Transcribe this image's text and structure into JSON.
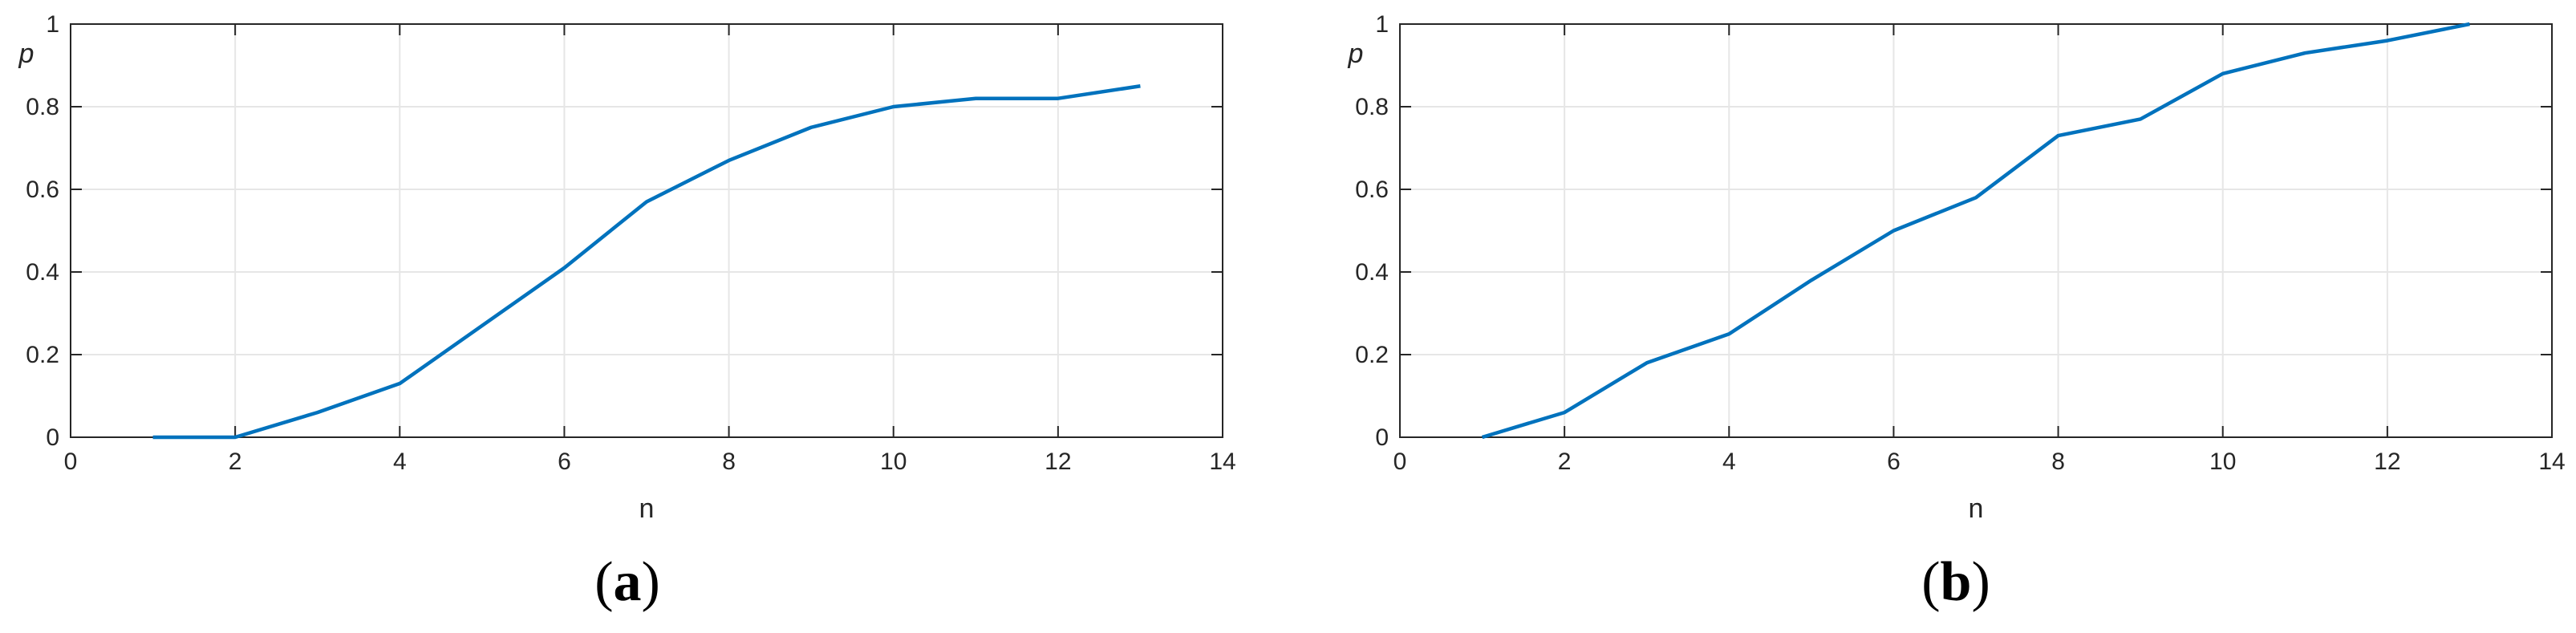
{
  "colors": {
    "series": "#0072BD",
    "axis": "#262626",
    "grid": "#e6e6e6"
  },
  "chart_data": [
    {
      "type": "line",
      "panel_label": "(a)",
      "panel_letter": "a",
      "xlabel": "n",
      "ylabel": "p",
      "xlim": [
        0,
        14
      ],
      "ylim": [
        0,
        1
      ],
      "x_ticks": [
        0,
        2,
        4,
        6,
        8,
        10,
        12,
        14
      ],
      "y_ticks": [
        0,
        0.2,
        0.4,
        0.6,
        0.8,
        1
      ],
      "x_tick_labels": [
        "0",
        "2",
        "4",
        "6",
        "8",
        "10",
        "12",
        "14"
      ],
      "y_tick_labels": [
        "0",
        "0.2",
        "0.4",
        "0.6",
        "0.8",
        "1"
      ],
      "grid": true,
      "series": [
        {
          "x": [
            1,
            2,
            3,
            4,
            5,
            6,
            7,
            8,
            9,
            10,
            11,
            12,
            13
          ],
          "values": [
            0,
            0,
            0.06,
            0.13,
            0.27,
            0.41,
            0.57,
            0.67,
            0.75,
            0.8,
            0.82,
            0.82,
            0.85
          ]
        }
      ]
    },
    {
      "type": "line",
      "panel_label": "(b)",
      "panel_letter": "b",
      "xlabel": "n",
      "ylabel": "p",
      "xlim": [
        0,
        14
      ],
      "ylim": [
        0,
        1
      ],
      "x_ticks": [
        0,
        2,
        4,
        6,
        8,
        10,
        12,
        14
      ],
      "y_ticks": [
        0,
        0.2,
        0.4,
        0.6,
        0.8,
        1
      ],
      "x_tick_labels": [
        "0",
        "2",
        "4",
        "6",
        "8",
        "10",
        "12",
        "14"
      ],
      "y_tick_labels": [
        "0",
        "0.2",
        "0.4",
        "0.6",
        "0.8",
        "1"
      ],
      "grid": true,
      "series": [
        {
          "x": [
            1,
            2,
            3,
            4,
            5,
            6,
            7,
            8,
            9,
            10,
            11,
            12,
            13
          ],
          "values": [
            0,
            0.06,
            0.18,
            0.25,
            0.38,
            0.5,
            0.58,
            0.73,
            0.77,
            0.88,
            0.93,
            0.96,
            1.0
          ]
        }
      ]
    }
  ]
}
